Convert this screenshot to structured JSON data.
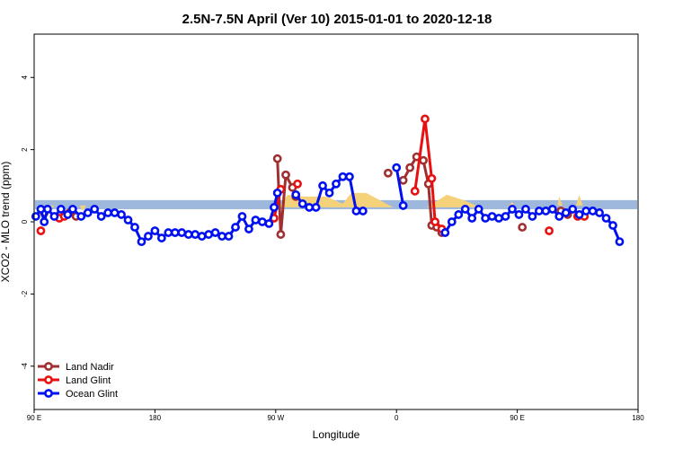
{
  "chart_data": {
    "type": "line",
    "title": "2.5N-7.5N April (Ver 10)   2015-01-01 to 2020-12-18",
    "xlabel": "Longitude",
    "ylabel": "XCO2 - MLO trend (ppm)",
    "xlim": [
      -90,
      270
    ],
    "ylim": [
      -5.2,
      5.2
    ],
    "x_ticks": [
      {
        "value": -90,
        "label": "90 E"
      },
      {
        "value": -18,
        "label": "180"
      },
      {
        "value": 54,
        "label": "90 W"
      },
      {
        "value": 126,
        "label": "0"
      },
      {
        "value": 198,
        "label": "90 E"
      },
      {
        "value": 270,
        "label": "180"
      }
    ],
    "y_ticks": [
      {
        "value": -4,
        "label": "-4"
      },
      {
        "value": -2,
        "label": "-2"
      },
      {
        "value": 0,
        "label": "0"
      },
      {
        "value": 2,
        "label": "2"
      },
      {
        "value": 4,
        "label": "4"
      }
    ],
    "grid": false,
    "legend_position": "bottom-left",
    "band": {
      "y_low": 0.35,
      "y_high": 0.6,
      "color": "#9db8dc"
    },
    "land_fill_color": "#f5d27a",
    "land_fill_segments": [
      [
        [
          -83,
          0.45
        ],
        [
          -81,
          0.3
        ],
        [
          -78,
          0.45
        ]
      ],
      [
        [
          -63,
          0.45
        ],
        [
          -61,
          0.3
        ],
        [
          -59,
          0.45
        ]
      ],
      [
        [
          56,
          0.4
        ],
        [
          61,
          0.75
        ],
        [
          71,
          0.7
        ],
        [
          84,
          0.7
        ],
        [
          94,
          0.5
        ],
        [
          99,
          0.8
        ],
        [
          108,
          0.8
        ],
        [
          124,
          0.4
        ]
      ],
      [
        [
          144,
          0.4
        ],
        [
          156,
          0.75
        ],
        [
          166,
          0.6
        ],
        [
          176,
          0.4
        ]
      ],
      [
        [
          192,
          0.4
        ],
        [
          195,
          0.55
        ],
        [
          197,
          0.4
        ]
      ],
      [
        [
          222,
          0.45
        ],
        [
          223,
          0.7
        ],
        [
          225,
          0.45
        ]
      ],
      [
        [
          233,
          0.45
        ],
        [
          235,
          0.75
        ],
        [
          237,
          0.45
        ]
      ]
    ],
    "series": [
      {
        "name": "Land Nadir",
        "color": "#a03030",
        "segments": [
          [
            [
              -84,
              0.25
            ]
          ],
          [
            [
              -69,
              0.25
            ],
            [
              -65,
              0.15
            ]
          ],
          [
            [
              55,
              1.75
            ],
            [
              57,
              -0.35
            ],
            [
              60,
              1.3
            ],
            [
              64,
              0.95
            ],
            [
              66,
              0.7
            ]
          ],
          [
            [
              121,
              1.35
            ]
          ],
          [
            [
              130,
              1.15
            ],
            [
              134,
              1.5
            ],
            [
              138,
              1.8
            ],
            [
              142,
              1.7
            ],
            [
              145,
              1.05
            ],
            [
              147,
              -0.1
            ],
            [
              150,
              -0.15
            ],
            [
              153,
              -0.3
            ]
          ],
          [
            [
              201,
              -0.15
            ]
          ],
          [
            [
              224,
              0.3
            ],
            [
              228,
              0.2
            ]
          ]
        ]
      },
      {
        "name": "Land Glint",
        "color": "#e81010",
        "segments": [
          [
            [
              -86,
              -0.25
            ]
          ],
          [
            [
              -75,
              0.1
            ],
            [
              -72,
              0.15
            ]
          ],
          [
            [
              53,
              0.1
            ],
            [
              57,
              0.9
            ]
          ],
          [
            [
              67,
              1.05
            ]
          ],
          [
            [
              137,
              0.85
            ],
            [
              143,
              2.85
            ],
            [
              147,
              1.2
            ],
            [
              149,
              0.0
            ],
            [
              153,
              -0.2
            ]
          ],
          [
            [
              217,
              -0.25
            ]
          ],
          [
            [
              234,
              0.15
            ],
            [
              238,
              0.15
            ]
          ]
        ]
      },
      {
        "name": "Ocean Glint",
        "color": "#0010ee",
        "segments": [
          [
            [
              -89,
              0.15
            ],
            [
              -86,
              0.35
            ],
            [
              -84,
              0.0
            ],
            [
              -82,
              0.35
            ],
            [
              -78,
              0.15
            ],
            [
              -74,
              0.35
            ],
            [
              -70,
              0.2
            ],
            [
              -67,
              0.35
            ],
            [
              -62,
              0.15
            ],
            [
              -58,
              0.25
            ],
            [
              -54,
              0.35
            ],
            [
              -50,
              0.15
            ],
            [
              -46,
              0.25
            ],
            [
              -42,
              0.25
            ],
            [
              -38,
              0.2
            ],
            [
              -34,
              0.05
            ],
            [
              -30,
              -0.15
            ],
            [
              -26,
              -0.55
            ],
            [
              -22,
              -0.4
            ],
            [
              -18,
              -0.25
            ],
            [
              -14,
              -0.45
            ],
            [
              -10,
              -0.3
            ],
            [
              -6,
              -0.3
            ],
            [
              -2,
              -0.3
            ],
            [
              2,
              -0.35
            ],
            [
              6,
              -0.35
            ],
            [
              10,
              -0.4
            ],
            [
              14,
              -0.35
            ],
            [
              18,
              -0.3
            ],
            [
              22,
              -0.4
            ],
            [
              26,
              -0.4
            ],
            [
              30,
              -0.15
            ],
            [
              34,
              0.15
            ],
            [
              38,
              -0.2
            ],
            [
              42,
              0.05
            ],
            [
              46,
              0.0
            ],
            [
              50,
              -0.05
            ],
            [
              53,
              0.4
            ],
            [
              55,
              0.8
            ]
          ],
          [
            [
              66,
              0.75
            ],
            [
              70,
              0.5
            ],
            [
              74,
              0.4
            ],
            [
              78,
              0.4
            ],
            [
              82,
              1.0
            ],
            [
              86,
              0.8
            ],
            [
              90,
              1.05
            ],
            [
              94,
              1.25
            ],
            [
              98,
              1.25
            ],
            [
              102,
              0.3
            ],
            [
              106,
              0.3
            ]
          ],
          [
            [
              126,
              1.5
            ],
            [
              130,
              0.45
            ]
          ],
          [
            [
              155,
              -0.3
            ],
            [
              159,
              0.0
            ],
            [
              163,
              0.2
            ],
            [
              167,
              0.35
            ],
            [
              171,
              0.1
            ],
            [
              175,
              0.35
            ],
            [
              179,
              0.1
            ],
            [
              183,
              0.15
            ],
            [
              187,
              0.1
            ],
            [
              191,
              0.15
            ],
            [
              195,
              0.35
            ],
            [
              199,
              0.2
            ],
            [
              203,
              0.35
            ],
            [
              207,
              0.15
            ],
            [
              211,
              0.3
            ],
            [
              215,
              0.3
            ],
            [
              219,
              0.35
            ],
            [
              223,
              0.15
            ],
            [
              227,
              0.25
            ],
            [
              231,
              0.35
            ],
            [
              235,
              0.2
            ],
            [
              239,
              0.3
            ],
            [
              243,
              0.3
            ],
            [
              247,
              0.25
            ],
            [
              251,
              0.1
            ],
            [
              255,
              -0.1
            ],
            [
              259,
              -0.55
            ]
          ]
        ]
      }
    ]
  }
}
